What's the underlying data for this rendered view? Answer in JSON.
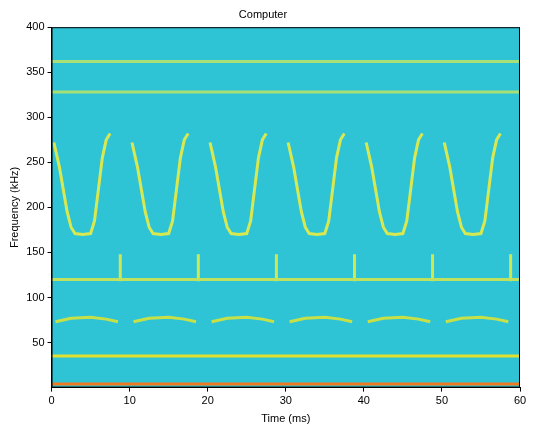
{
  "chart_data": {
    "type": "line",
    "title": "Computer",
    "x_label": "Time (ms)",
    "y_label": "Frequency (kHz)",
    "xlim": [
      0,
      60
    ],
    "xticks": [
      0,
      10,
      20,
      30,
      40,
      50,
      60
    ],
    "ylim": [
      0,
      400
    ],
    "yticks": [
      50,
      100,
      150,
      200,
      250,
      300,
      350,
      400
    ],
    "grid": false,
    "series": [
      {
        "color": "#a8e078",
        "x": [
          0,
          60
        ],
        "values": [
          362,
          362
        ]
      },
      {
        "color": "#a8e078",
        "x": [
          0,
          60
        ],
        "values": [
          328,
          328
        ]
      },
      {
        "color": "#c0e060",
        "x": [
          0,
          60
        ],
        "values": [
          120,
          120
        ]
      },
      {
        "color": "#e0e030",
        "x": [
          0,
          60
        ],
        "values": [
          35,
          35
        ]
      },
      {
        "color": "#f07820",
        "x": [
          0,
          60
        ],
        "values": [
          4,
          4
        ]
      },
      {
        "color": "#c8e048",
        "x": [
          0.5,
          2.5,
          5,
          7,
          8.5,
          9,
          10.5,
          12.5,
          15,
          17,
          18.5,
          19,
          20.5,
          22.5,
          25,
          27,
          28.5,
          29,
          30.5,
          32.5,
          35,
          37,
          38.5,
          39,
          40.5,
          42.5,
          45,
          47,
          48.5,
          49,
          50.5,
          52.5,
          55,
          57,
          58.5
        ],
        "values": [
          73,
          77,
          78,
          76,
          73,
          null,
          73,
          77,
          78,
          76,
          73,
          null,
          73,
          77,
          78,
          76,
          73,
          null,
          73,
          77,
          78,
          76,
          73,
          null,
          73,
          77,
          78,
          76,
          73,
          null,
          73,
          77,
          78,
          76,
          73
        ]
      },
      {
        "color": "#d8e850",
        "x": [
          0.3,
          1,
          1.5,
          2,
          2.5,
          3,
          4,
          5,
          5.5,
          6,
          6.5,
          7,
          7.5,
          8,
          10.3,
          11,
          11.5,
          12,
          12.5,
          13,
          14,
          15,
          15.5,
          16,
          16.5,
          17,
          17.5,
          18,
          20.3,
          21,
          21.5,
          22,
          22.5,
          23,
          24,
          25,
          25.5,
          26,
          26.5,
          27,
          27.5,
          28,
          30.3,
          31,
          31.5,
          32,
          32.5,
          33,
          34,
          35,
          35.5,
          36,
          36.5,
          37,
          37.5,
          38,
          40.3,
          41,
          41.5,
          42,
          42.5,
          43,
          44,
          45,
          45.5,
          46,
          46.5,
          47,
          47.5,
          48,
          50.3,
          51,
          51.5,
          52,
          52.5,
          53,
          54,
          55,
          55.5,
          56,
          56.5,
          57,
          57.5
        ],
        "values": [
          272,
          245,
          220,
          195,
          178,
          171,
          170,
          171,
          185,
          220,
          255,
          275,
          282,
          null,
          272,
          245,
          220,
          195,
          178,
          171,
          170,
          171,
          185,
          220,
          255,
          275,
          282,
          null,
          272,
          245,
          220,
          195,
          178,
          171,
          170,
          171,
          185,
          220,
          255,
          275,
          282,
          null,
          272,
          245,
          220,
          195,
          178,
          171,
          170,
          171,
          185,
          220,
          255,
          275,
          282,
          null,
          272,
          245,
          220,
          195,
          178,
          171,
          170,
          171,
          185,
          220,
          255,
          275,
          282,
          null,
          272,
          245,
          220,
          195,
          178,
          171,
          170,
          171,
          185,
          220,
          255,
          275,
          282
        ]
      },
      {
        "color": "#d0e850",
        "x": [
          8.8,
          8.8,
          8.9,
          18.8,
          18.8,
          18.9,
          28.8,
          28.8,
          28.9,
          38.8,
          38.8,
          38.9,
          48.8,
          48.8,
          48.9,
          58.8,
          58.8
        ],
        "values": [
          148,
          118,
          null,
          148,
          118,
          null,
          148,
          118,
          null,
          148,
          118,
          null,
          148,
          118,
          null,
          148,
          118
        ]
      }
    ]
  }
}
